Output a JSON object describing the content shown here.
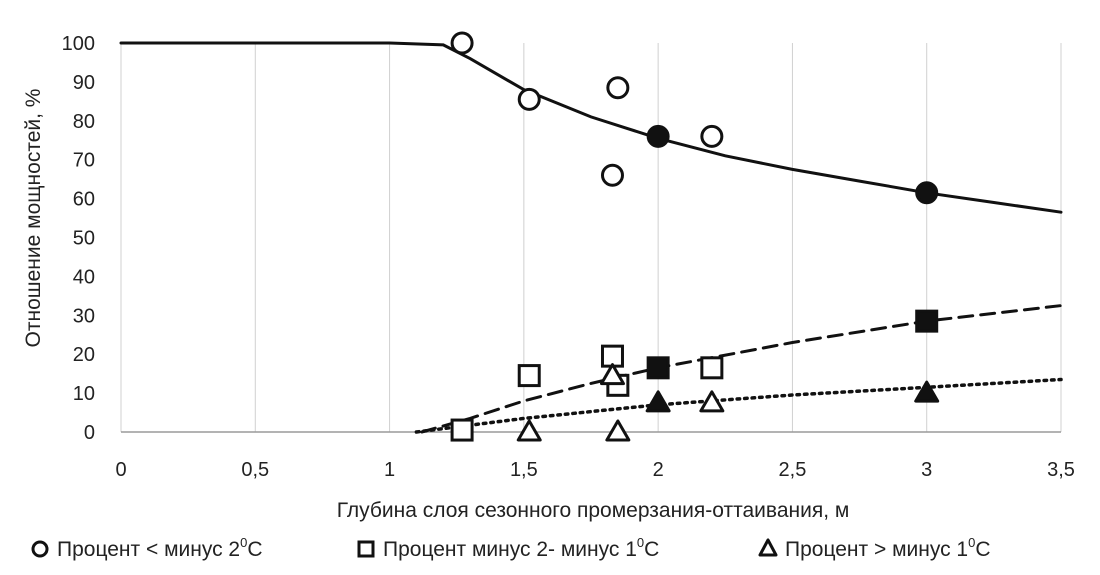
{
  "chart_data": {
    "type": "scatter",
    "xlabel": "Глубина слоя сезонного промерзания-оттаивания, м",
    "ylabel": "Отношение мощностей, %",
    "xlim": [
      0,
      3.5
    ],
    "ylim": [
      0,
      100
    ],
    "x_ticks": [
      "0",
      "0,5",
      "1",
      "1,5",
      "2",
      "2,5",
      "3",
      "3,5"
    ],
    "y_ticks": [
      "0",
      "10",
      "20",
      "30",
      "40",
      "50",
      "60",
      "70",
      "80",
      "90",
      "100"
    ],
    "grid": "vertical",
    "legend_position": "bottom",
    "series": [
      {
        "name": "Процент < минус  2⁰C",
        "legend_main": "Процент < минус  2",
        "legend_sup": "0",
        "legend_end": "C",
        "marker": "circle",
        "line": "solid",
        "open_points": [
          {
            "x": 1.27,
            "y": 100
          },
          {
            "x": 1.52,
            "y": 85.5
          },
          {
            "x": 1.85,
            "y": 88.5
          },
          {
            "x": 1.83,
            "y": 66
          },
          {
            "x": 2.2,
            "y": 76
          }
        ],
        "filled_points": [
          {
            "x": 2.0,
            "y": 76
          },
          {
            "x": 3.0,
            "y": 61.5
          }
        ],
        "trend": [
          {
            "x": 0,
            "y": 100
          },
          {
            "x": 1.0,
            "y": 100
          },
          {
            "x": 1.2,
            "y": 99.5
          },
          {
            "x": 1.3,
            "y": 96
          },
          {
            "x": 1.5,
            "y": 88
          },
          {
            "x": 1.75,
            "y": 81
          },
          {
            "x": 2.0,
            "y": 75.5
          },
          {
            "x": 2.25,
            "y": 71
          },
          {
            "x": 2.5,
            "y": 67.5
          },
          {
            "x": 2.75,
            "y": 64.5
          },
          {
            "x": 3.0,
            "y": 61.5
          },
          {
            "x": 3.25,
            "y": 59
          },
          {
            "x": 3.5,
            "y": 56.5
          }
        ]
      },
      {
        "name": "Процент минус 2- минус 1⁰C",
        "legend_main": "Процент минус 2- минус 1",
        "legend_sup": "0",
        "legend_end": "C",
        "marker": "square",
        "line": "dashed",
        "open_points": [
          {
            "x": 1.27,
            "y": 0.5
          },
          {
            "x": 1.52,
            "y": 14.5
          },
          {
            "x": 1.83,
            "y": 19.5
          },
          {
            "x": 1.85,
            "y": 12
          },
          {
            "x": 2.2,
            "y": 16.5
          }
        ],
        "filled_points": [
          {
            "x": 2.0,
            "y": 16.5
          },
          {
            "x": 3.0,
            "y": 28.5
          }
        ],
        "trend": [
          {
            "x": 1.12,
            "y": 0
          },
          {
            "x": 1.3,
            "y": 3.5
          },
          {
            "x": 1.5,
            "y": 8
          },
          {
            "x": 1.75,
            "y": 12.5
          },
          {
            "x": 2.0,
            "y": 16.5
          },
          {
            "x": 2.5,
            "y": 23
          },
          {
            "x": 3.0,
            "y": 28.5
          },
          {
            "x": 3.5,
            "y": 32.5
          }
        ]
      },
      {
        "name": "Процент > минус  1⁰C",
        "legend_main": "Процент > минус  1",
        "legend_sup": "0",
        "legend_end": "C",
        "marker": "triangle",
        "line": "dotted",
        "open_points": [
          {
            "x": 1.52,
            "y": 0
          },
          {
            "x": 1.83,
            "y": 14.5
          },
          {
            "x": 1.85,
            "y": 0
          },
          {
            "x": 2.2,
            "y": 7.5
          }
        ],
        "filled_points": [
          {
            "x": 2.0,
            "y": 7.5
          },
          {
            "x": 3.0,
            "y": 10
          }
        ],
        "trend": [
          {
            "x": 1.1,
            "y": 0
          },
          {
            "x": 1.5,
            "y": 3.5
          },
          {
            "x": 2.0,
            "y": 7
          },
          {
            "x": 2.5,
            "y": 9.5
          },
          {
            "x": 3.0,
            "y": 11.5
          },
          {
            "x": 3.5,
            "y": 13.5
          }
        ]
      }
    ]
  }
}
